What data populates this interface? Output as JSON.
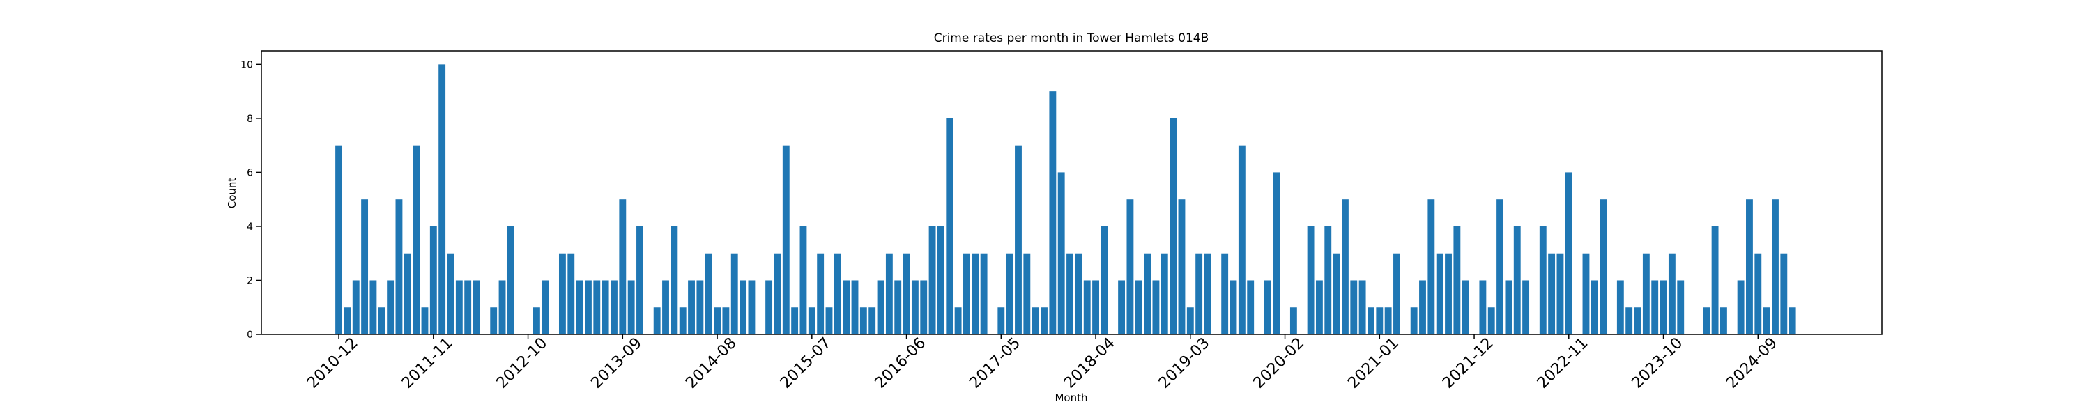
{
  "chart_data": {
    "type": "bar",
    "title": "Crime rates per month in Tower Hamlets 014B",
    "x_label": "Month",
    "y_label": "Count",
    "categories": [
      "2010-12",
      null,
      null,
      null,
      null,
      null,
      null,
      null,
      null,
      null,
      null,
      "2011-11",
      null,
      null,
      null,
      null,
      null,
      null,
      null,
      null,
      null,
      null,
      "2012-10",
      null,
      null,
      null,
      null,
      null,
      null,
      null,
      null,
      null,
      null,
      "2013-09",
      null,
      null,
      null,
      null,
      null,
      null,
      null,
      null,
      null,
      null,
      "2014-08",
      null,
      null,
      null,
      null,
      null,
      null,
      null,
      null,
      null,
      null,
      "2015-07",
      null,
      null,
      null,
      null,
      null,
      null,
      null,
      null,
      null,
      null,
      "2016-06",
      null,
      null,
      null,
      null,
      null,
      null,
      null,
      null,
      null,
      null,
      "2017-05",
      null,
      null,
      null,
      null,
      null,
      null,
      null,
      null,
      null,
      null,
      "2018-04",
      null,
      null,
      null,
      null,
      null,
      null,
      null,
      null,
      null,
      null,
      "2019-03",
      null,
      null,
      null,
      null,
      null,
      null,
      null,
      null,
      null,
      null,
      "2020-02",
      null,
      null,
      null,
      null,
      null,
      null,
      null,
      null,
      null,
      null,
      "2021-01",
      null,
      null,
      null,
      null,
      null,
      null,
      null,
      null,
      null,
      null,
      "2021-12",
      null,
      null,
      null,
      null,
      null,
      null,
      null,
      null,
      null,
      null,
      "2022-11",
      null,
      null,
      null,
      null,
      null,
      null,
      null,
      null,
      null,
      null,
      "2023-10",
      null,
      null,
      null,
      null,
      null,
      null,
      null,
      null,
      null,
      null,
      "2024-09",
      null,
      null,
      null,
      null
    ],
    "values": [
      7,
      1,
      2,
      5,
      2,
      1,
      2,
      5,
      3,
      7,
      1,
      4,
      10,
      3,
      2,
      2,
      2,
      0,
      1,
      2,
      4,
      0,
      0,
      1,
      2,
      0,
      3,
      3,
      2,
      2,
      2,
      2,
      2,
      5,
      2,
      4,
      0,
      1,
      2,
      4,
      1,
      2,
      2,
      3,
      1,
      1,
      3,
      2,
      2,
      0,
      2,
      3,
      7,
      1,
      4,
      1,
      3,
      1,
      3,
      2,
      2,
      1,
      1,
      2,
      3,
      2,
      3,
      2,
      2,
      4,
      4,
      8,
      1,
      3,
      3,
      3,
      0,
      1,
      3,
      7,
      3,
      1,
      1,
      9,
      6,
      3,
      3,
      2,
      2,
      4,
      0,
      2,
      5,
      2,
      3,
      2,
      3,
      8,
      5,
      1,
      3,
      3,
      0,
      3,
      2,
      7,
      2,
      0,
      2,
      6,
      0,
      1,
      0,
      4,
      2,
      4,
      3,
      5,
      2,
      2,
      1,
      1,
      1,
      3,
      0,
      1,
      2,
      5,
      3,
      3,
      4,
      2,
      0,
      2,
      1,
      5,
      2,
      4,
      2,
      0,
      4,
      3,
      3,
      6,
      0,
      3,
      2,
      5,
      0,
      2,
      1,
      1,
      3,
      2,
      2,
      3,
      2,
      0,
      0,
      1,
      4,
      1,
      0,
      2,
      5,
      3,
      1,
      5,
      3,
      1
    ],
    "color": "#1f77b4",
    "ylim": [
      0,
      10.5
    ],
    "yticks": [
      0,
      2,
      4,
      6,
      8,
      10
    ],
    "grid": false
  }
}
